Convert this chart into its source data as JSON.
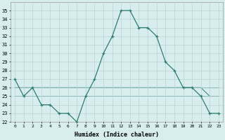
{
  "xlabel": "Humidex (Indice chaleur)",
  "x": [
    0,
    1,
    2,
    3,
    4,
    5,
    6,
    7,
    8,
    9,
    10,
    11,
    12,
    13,
    14,
    15,
    16,
    17,
    18,
    19,
    20,
    21,
    22,
    23
  ],
  "y_main": [
    27,
    25,
    26,
    24,
    24,
    23,
    23,
    22,
    25,
    27,
    30,
    32,
    35,
    35,
    33,
    33,
    32,
    29,
    28,
    26,
    26,
    25,
    23,
    23
  ],
  "y_flat1": [
    26,
    26,
    26,
    26,
    26,
    26,
    26,
    26,
    26,
    26,
    26,
    26,
    26,
    26,
    26,
    26,
    26,
    26,
    26,
    26,
    26,
    26,
    26,
    26
  ],
  "y_flat2": [
    26,
    26,
    26,
    26,
    26,
    26,
    26,
    26,
    26,
    26,
    26,
    26,
    26,
    26,
    26,
    26,
    26,
    26,
    26,
    26,
    26,
    26,
    25,
    25
  ],
  "y_flat3": [
    25,
    25,
    25,
    25,
    25,
    25,
    25,
    25,
    25,
    25,
    25,
    25,
    25,
    25,
    25,
    25,
    25,
    25,
    25,
    25,
    25,
    25,
    25,
    25
  ],
  "y_flat4": [
    26,
    26,
    26,
    26,
    26,
    26,
    26,
    26,
    26,
    26,
    26,
    26,
    26,
    26,
    26,
    26,
    26,
    26,
    26,
    26,
    26,
    26,
    26,
    26
  ],
  "line_color": "#2e7d6e",
  "bg_color": "#d8eeee",
  "grid_color": "#b8d4d4",
  "ylim": [
    22,
    36
  ],
  "xlim": [
    -0.5,
    23.5
  ],
  "yticks": [
    22,
    23,
    24,
    25,
    26,
    27,
    28,
    29,
    30,
    31,
    32,
    33,
    34,
    35
  ],
  "xticks": [
    0,
    1,
    2,
    3,
    4,
    5,
    6,
    7,
    8,
    9,
    10,
    11,
    12,
    13,
    14,
    15,
    16,
    17,
    18,
    19,
    20,
    21,
    22,
    23
  ]
}
